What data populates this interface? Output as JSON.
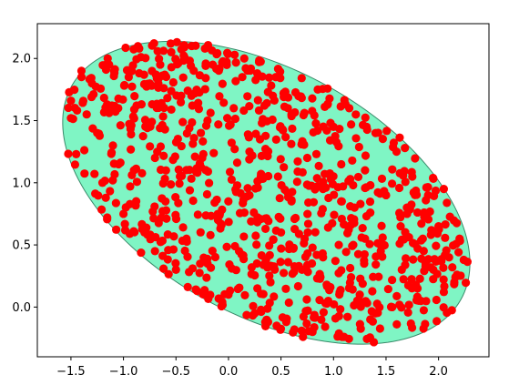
{
  "chart_data": {
    "type": "scatter",
    "title": "",
    "xlabel": "",
    "ylabel": "",
    "xlim": [
      -1.82,
      2.48
    ],
    "ylim": [
      -0.4,
      2.28
    ],
    "grid": false,
    "x_ticks": [
      -1.5,
      -1.0,
      -0.5,
      0.0,
      0.5,
      1.0,
      1.5,
      2.0
    ],
    "y_ticks": [
      0.0,
      0.5,
      1.0,
      1.5,
      2.0
    ],
    "x_tick_labels": [
      "−1.5",
      "−1.0",
      "−0.5",
      "0.0",
      "0.5",
      "1.0",
      "1.5",
      "2.0"
    ],
    "y_tick_labels": [
      "0.0",
      "0.5",
      "1.0",
      "1.5",
      "2.0"
    ],
    "ellipse": {
      "center": [
        0.36,
        0.92
      ],
      "width": 4.1,
      "height": 2.04,
      "angle_deg": -22,
      "fill_color": "#7ff5c4",
      "edge_color": "#3a8a6a"
    },
    "point_color": "#ff0000",
    "point_count": 900,
    "points": [
      [
        -1.5,
        1.66
      ],
      [
        -1.5,
        1.52
      ],
      [
        -1.45,
        1.23
      ],
      [
        -1.4,
        1.9
      ],
      [
        -1.35,
        1.55
      ],
      [
        -1.3,
        1.8
      ],
      [
        -1.25,
        1.4
      ],
      [
        -1.2,
        1.0
      ],
      [
        -1.15,
        2.0
      ],
      [
        -1.1,
        1.3
      ],
      [
        -1.05,
        1.6
      ],
      [
        -1.0,
        0.75
      ],
      [
        -0.95,
        1.85
      ],
      [
        -0.9,
        1.1
      ],
      [
        -0.85,
        2.08
      ],
      [
        -0.8,
        0.6
      ],
      [
        -0.75,
        1.45
      ],
      [
        -0.7,
        0.45
      ],
      [
        -0.65,
        1.95
      ],
      [
        -0.6,
        0.85
      ],
      [
        -0.55,
        2.12
      ],
      [
        -0.5,
        0.3
      ],
      [
        -0.45,
        1.7
      ],
      [
        -0.4,
        0.55
      ],
      [
        -0.35,
        2.1
      ],
      [
        -0.3,
        0.13
      ],
      [
        -0.25,
        1.2
      ],
      [
        -0.2,
        0.35
      ],
      [
        -0.15,
        1.95
      ],
      [
        -0.1,
        0.7
      ],
      [
        0.0,
        0.1
      ],
      [
        0.05,
        1.6
      ],
      [
        0.1,
        0.45
      ],
      [
        0.15,
        2.0
      ],
      [
        0.2,
        0.9
      ],
      [
        0.25,
        -0.05
      ],
      [
        0.3,
        1.35
      ],
      [
        0.4,
        0.2
      ],
      [
        0.45,
        1.85
      ],
      [
        0.5,
        0.6
      ],
      [
        0.55,
        -0.12
      ],
      [
        0.6,
        1.55
      ],
      [
        0.7,
        0.3
      ],
      [
        0.75,
        1.2
      ],
      [
        0.8,
        -0.2
      ],
      [
        0.85,
        1.75
      ],
      [
        0.9,
        0.95
      ],
      [
        0.95,
        0.05
      ],
      [
        1.0,
        1.45
      ],
      [
        1.05,
        0.5
      ],
      [
        1.1,
        -0.24
      ],
      [
        1.15,
        1.6
      ],
      [
        1.2,
        0.8
      ],
      [
        1.25,
        0.1
      ],
      [
        1.3,
        1.1
      ],
      [
        1.35,
        -0.1
      ],
      [
        1.4,
        1.4
      ],
      [
        1.45,
        0.45
      ],
      [
        1.5,
        0.9
      ],
      [
        1.55,
        0.0
      ],
      [
        1.6,
        1.25
      ],
      [
        1.65,
        0.3
      ],
      [
        1.7,
        0.75
      ],
      [
        1.75,
        1.05
      ],
      [
        1.8,
        0.15
      ],
      [
        1.85,
        0.55
      ],
      [
        1.9,
        0.9
      ],
      [
        1.95,
        0.3
      ],
      [
        2.0,
        0.65
      ],
      [
        2.05,
        0.95
      ],
      [
        2.1,
        0.4
      ],
      [
        2.15,
        0.2
      ],
      [
        2.2,
        0.55
      ],
      [
        2.24,
        0.38
      ],
      [
        0.6,
        0.85
      ],
      [
        0.2,
        1.25
      ],
      [
        -0.2,
        1.5
      ],
      [
        0.9,
        0.4
      ],
      [
        1.3,
        0.55
      ],
      [
        -0.7,
        1.2
      ]
    ]
  }
}
